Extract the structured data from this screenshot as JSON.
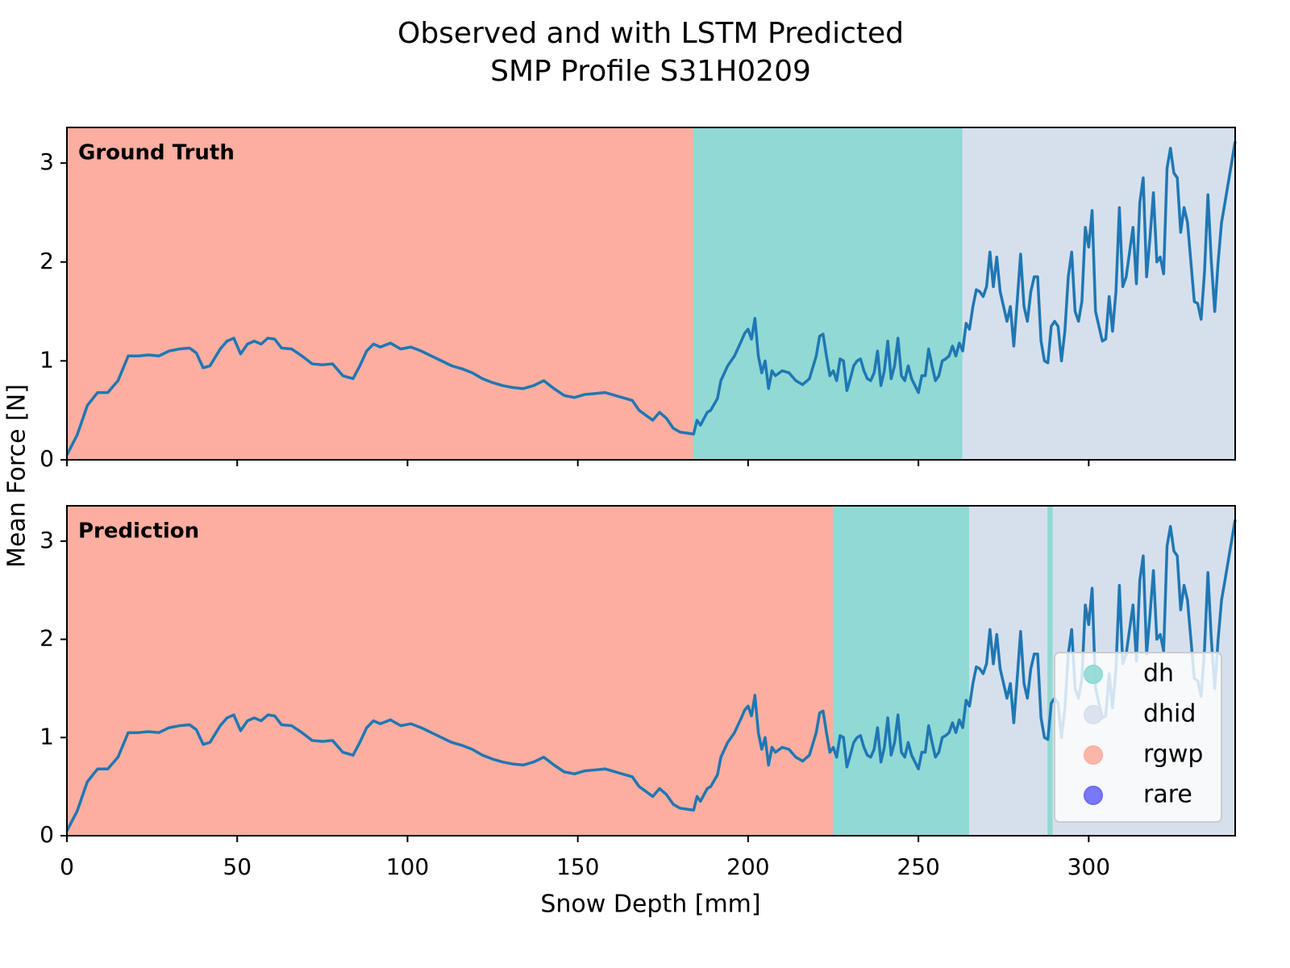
{
  "chart_data": {
    "type": "line",
    "title": "Observed and with LSTM Predicted",
    "subtitle": "SMP Profile S31H0209",
    "x_label": "Snow Depth [mm]",
    "y_label": "Mean Force [N]",
    "xlim": [
      0,
      343
    ],
    "ylim": [
      0,
      3.36
    ],
    "xticks": [
      0,
      50,
      100,
      150,
      200,
      250,
      300
    ],
    "yticks": [
      0,
      1,
      2,
      3
    ],
    "line_color": "#1f77b4",
    "x": [
      0,
      3,
      6,
      9,
      12,
      15,
      18,
      21,
      24,
      27,
      30,
      33,
      36,
      38,
      40,
      42,
      45,
      47,
      49,
      51,
      53,
      55,
      57,
      59,
      61,
      63,
      66,
      69,
      72,
      75,
      78,
      81,
      84,
      86,
      88,
      90,
      92,
      95,
      98,
      101,
      104,
      107,
      110,
      113,
      116,
      119,
      122,
      125,
      128,
      131,
      134,
      137,
      140,
      143,
      146,
      149,
      152,
      155,
      158,
      161,
      164,
      166,
      168,
      170,
      172,
      174,
      176,
      178,
      180,
      182,
      184,
      185,
      186,
      188,
      189,
      191,
      192,
      194,
      196,
      198,
      199,
      200,
      201,
      202,
      203,
      204,
      205,
      206,
      207,
      208,
      210,
      212,
      214,
      216,
      218,
      220,
      221,
      222,
      223,
      224,
      225,
      226,
      227,
      228,
      229,
      230,
      231,
      232,
      233,
      234,
      235,
      236,
      237,
      238,
      239,
      240,
      241,
      242,
      243,
      244,
      245,
      246,
      247,
      248,
      249,
      250,
      251,
      252,
      253,
      254,
      255,
      256,
      257,
      258,
      259,
      260,
      261,
      262,
      263,
      264,
      265,
      266,
      267,
      268,
      269,
      270,
      271,
      272,
      273,
      274,
      275,
      276,
      277,
      278,
      279,
      280,
      281,
      282,
      283,
      284,
      285,
      286,
      287,
      288,
      289,
      290,
      291,
      292,
      293,
      294,
      295,
      296,
      297,
      298,
      299,
      300,
      301,
      302,
      303,
      304,
      305,
      306,
      307,
      308,
      309,
      310,
      311,
      312,
      313,
      314,
      315,
      316,
      317,
      318,
      319,
      320,
      321,
      322,
      323,
      324,
      325,
      326,
      327,
      328,
      329,
      330,
      331,
      332,
      333,
      334,
      335,
      336,
      337,
      338,
      339,
      340,
      343
    ],
    "values": [
      0.05,
      0.25,
      0.55,
      0.68,
      0.68,
      0.8,
      1.05,
      1.05,
      1.06,
      1.05,
      1.1,
      1.12,
      1.13,
      1.08,
      0.93,
      0.95,
      1.12,
      1.2,
      1.23,
      1.07,
      1.17,
      1.2,
      1.17,
      1.23,
      1.22,
      1.13,
      1.12,
      1.05,
      0.97,
      0.96,
      0.97,
      0.85,
      0.82,
      0.95,
      1.1,
      1.17,
      1.14,
      1.18,
      1.12,
      1.14,
      1.1,
      1.05,
      1.0,
      0.95,
      0.92,
      0.88,
      0.82,
      0.78,
      0.75,
      0.73,
      0.72,
      0.75,
      0.8,
      0.72,
      0.65,
      0.63,
      0.66,
      0.67,
      0.68,
      0.65,
      0.62,
      0.6,
      0.5,
      0.45,
      0.4,
      0.48,
      0.42,
      0.32,
      0.28,
      0.27,
      0.26,
      0.4,
      0.35,
      0.48,
      0.5,
      0.62,
      0.8,
      0.95,
      1.05,
      1.2,
      1.28,
      1.32,
      1.22,
      1.43,
      1.05,
      0.88,
      1.0,
      0.72,
      0.9,
      0.85,
      0.9,
      0.88,
      0.8,
      0.76,
      0.82,
      1.05,
      1.25,
      1.27,
      1.05,
      0.85,
      0.9,
      0.8,
      1.02,
      1.0,
      0.7,
      0.82,
      0.95,
      1.0,
      1.02,
      0.9,
      0.82,
      0.8,
      0.88,
      1.1,
      0.75,
      0.9,
      1.2,
      0.82,
      0.95,
      1.23,
      0.85,
      0.8,
      0.95,
      0.82,
      0.75,
      0.68,
      0.85,
      0.85,
      1.12,
      0.95,
      0.8,
      0.85,
      1.0,
      1.02,
      1.05,
      1.15,
      1.05,
      1.18,
      1.1,
      1.38,
      1.32,
      1.55,
      1.72,
      1.7,
      1.65,
      1.75,
      2.1,
      1.75,
      2.05,
      1.7,
      1.55,
      1.4,
      1.55,
      1.15,
      1.6,
      2.08,
      1.55,
      1.4,
      1.7,
      1.85,
      1.85,
      1.2,
      1.0,
      0.98,
      1.35,
      1.4,
      1.35,
      1.0,
      1.3,
      1.85,
      2.1,
      1.5,
      1.4,
      1.6,
      2.35,
      2.15,
      2.52,
      1.5,
      1.35,
      1.2,
      1.22,
      1.65,
      1.3,
      1.7,
      2.55,
      1.75,
      1.85,
      2.1,
      2.35,
      1.78,
      2.6,
      2.85,
      1.85,
      2.25,
      2.7,
      2.0,
      2.05,
      1.88,
      2.95,
      3.15,
      2.9,
      2.85,
      2.3,
      2.55,
      2.4,
      2.0,
      1.6,
      1.58,
      1.42,
      1.9,
      2.68,
      2.0,
      1.5,
      2.0,
      2.4,
      2.6,
      3.22
    ],
    "classes": [
      {
        "name": "dh",
        "color": "#90d9d4"
      },
      {
        "name": "dhid",
        "color": "#d6e0ec"
      },
      {
        "name": "rgwp",
        "color": "#fcaea0"
      },
      {
        "name": "rare",
        "color": "#6a6af7"
      }
    ],
    "legend": "lower right",
    "panels": [
      {
        "label": "Ground Truth",
        "segments": [
          {
            "class": 2,
            "start": 0,
            "end": 184
          },
          {
            "class": 0,
            "start": 184,
            "end": 263
          },
          {
            "class": 1,
            "start": 263,
            "end": 343
          }
        ]
      },
      {
        "label": "Prediction",
        "segments": [
          {
            "class": 2,
            "start": 0,
            "end": 225
          },
          {
            "class": 0,
            "start": 225,
            "end": 265
          },
          {
            "class": 1,
            "start": 265,
            "end": 288
          },
          {
            "class": 0,
            "start": 288,
            "end": 289.5
          },
          {
            "class": 1,
            "start": 289.5,
            "end": 343
          }
        ]
      }
    ]
  }
}
